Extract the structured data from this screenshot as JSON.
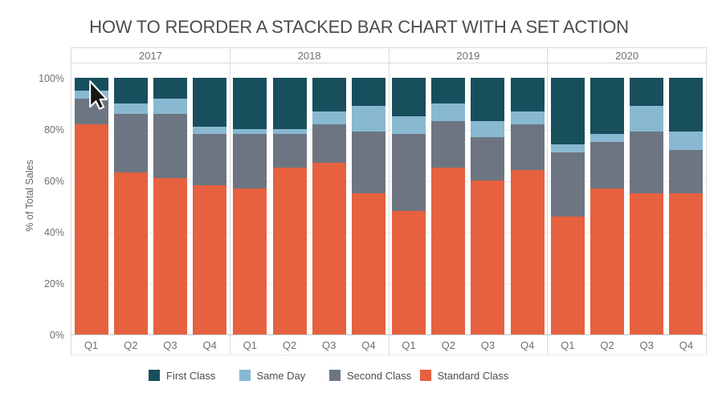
{
  "title": "HOW TO REORDER A STACKED BAR CHART WITH A SET ACTION",
  "y_axis": {
    "label": "% of Total Sales",
    "ticks": [
      "0%",
      "20%",
      "40%",
      "60%",
      "80%",
      "100%"
    ]
  },
  "x_axis": {
    "groups": [
      "2017",
      "2018",
      "2019",
      "2020"
    ],
    "categories": [
      "Q1",
      "Q2",
      "Q3",
      "Q4"
    ]
  },
  "legend": {
    "order": [
      "First Class",
      "Same Day",
      "Second Class",
      "Standard Class"
    ]
  },
  "colors": {
    "First Class": "#184F5D",
    "Same Day": "#88B9D1",
    "Second Class": "#6D7582",
    "Standard Class": "#E6613F",
    "panel_border": "#d9d9d9",
    "gridline": "#ececec"
  },
  "chart_data": {
    "type": "bar",
    "subtype": "stacked-100-percent",
    "title": "HOW TO REORDER A STACKED BAR CHART WITH A SET ACTION",
    "xlabel": "",
    "ylabel": "% of Total Sales",
    "ylim": [
      0,
      100
    ],
    "y_tick_step": 20,
    "grid": "horizontal-faint",
    "legend_position": "bottom",
    "groups": [
      "2017",
      "2018",
      "2019",
      "2020"
    ],
    "categories": [
      "Q1",
      "Q2",
      "Q3",
      "Q4"
    ],
    "stack_order_bottom_to_top": [
      "Standard Class",
      "Second Class",
      "Same Day",
      "First Class"
    ],
    "series": [
      {
        "name": "Standard Class",
        "color": "#E6613F",
        "values": {
          "2017": [
            82,
            63,
            61,
            58
          ],
          "2018": [
            57,
            65,
            67,
            55
          ],
          "2019": [
            48,
            65,
            60,
            64
          ],
          "2020": [
            46,
            57,
            55,
            55
          ]
        }
      },
      {
        "name": "Second Class",
        "color": "#6D7582",
        "values": {
          "2017": [
            10,
            23,
            25,
            20
          ],
          "2018": [
            21,
            13,
            15,
            24
          ],
          "2019": [
            30,
            18,
            17,
            18
          ],
          "2020": [
            25,
            18,
            24,
            17
          ]
        }
      },
      {
        "name": "Same Day",
        "color": "#88B9D1",
        "values": {
          "2017": [
            3,
            4,
            6,
            3
          ],
          "2018": [
            2,
            2,
            5,
            10
          ],
          "2019": [
            7,
            7,
            6,
            5
          ],
          "2020": [
            3,
            3,
            10,
            7
          ]
        }
      },
      {
        "name": "First Class",
        "color": "#184F5D",
        "values": {
          "2017": [
            5,
            10,
            8,
            19
          ],
          "2018": [
            20,
            20,
            13,
            11
          ],
          "2019": [
            15,
            10,
            17,
            13
          ],
          "2020": [
            26,
            22,
            11,
            21
          ]
        }
      }
    ]
  }
}
